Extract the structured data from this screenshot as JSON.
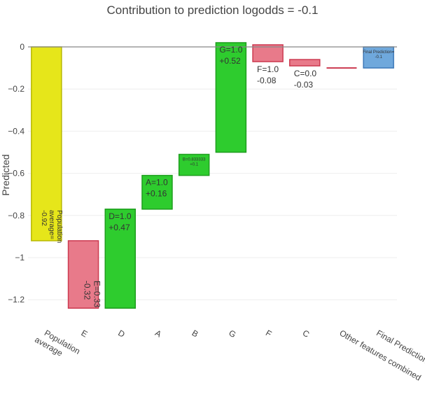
{
  "chart_data": {
    "type": "waterfall",
    "title": "Contribution to prediction logodds = -0.1",
    "ylabel": "Predicted",
    "xlabel": "",
    "ylim": [
      -1.3,
      0.03
    ],
    "yticks": [
      {
        "value": 0,
        "label": "0"
      },
      {
        "value": -0.2,
        "label": "−0.2"
      },
      {
        "value": -0.4,
        "label": "−0.4"
      },
      {
        "value": -0.6,
        "label": "−0.6"
      },
      {
        "value": -0.8,
        "label": "−0.8"
      },
      {
        "value": -1.0,
        "label": "−1"
      },
      {
        "value": -1.2,
        "label": "−1.2"
      }
    ],
    "colors": {
      "base": "#e6e61a",
      "base_border": "#b8b800",
      "positive": "#2ecc2e",
      "positive_border": "#1f9e1f",
      "negative": "#e87a8a",
      "negative_border": "#cc3a50",
      "final": "#6fa8dc",
      "final_border": "#3d78b8"
    },
    "bars": [
      {
        "category": "Population\naverage",
        "kind": "base",
        "start": 0,
        "end": -0.92,
        "label_lines": [
          "Population",
          "average=",
          "-0.92"
        ],
        "label_style": "rotated"
      },
      {
        "category": "E",
        "kind": "negative",
        "start": -0.92,
        "end": -1.24,
        "label_lines": [
          "E=0.33",
          "-0.32"
        ],
        "label_style": "rotated"
      },
      {
        "category": "D",
        "kind": "positive",
        "start": -1.24,
        "end": -0.77,
        "label_lines": [
          "D=1.0",
          "+0.47"
        ],
        "label_style": "normal"
      },
      {
        "category": "A",
        "kind": "positive",
        "start": -0.77,
        "end": -0.61,
        "label_lines": [
          "A=1.0",
          "+0.16"
        ],
        "label_style": "normal"
      },
      {
        "category": "B",
        "kind": "positive",
        "start": -0.61,
        "end": -0.51,
        "label_lines": [
          "B=0.833333",
          "+0.1"
        ],
        "label_style": "small"
      },
      {
        "category": "G",
        "kind": "positive",
        "start": -0.5,
        "end": 0.02,
        "label_lines": [
          "G=1.0",
          "+0.52"
        ],
        "label_style": "normal"
      },
      {
        "category": "F",
        "kind": "negative",
        "start": 0.01,
        "end": -0.07,
        "label_lines": [
          "F=1.0",
          "-0.08"
        ],
        "label_style": "below"
      },
      {
        "category": "C",
        "kind": "negative",
        "start": -0.06,
        "end": -0.09,
        "label_lines": [
          "C=0.0",
          "-0.03"
        ],
        "label_style": "below"
      },
      {
        "category": "Other features combined",
        "kind": "negative",
        "start": -0.1,
        "end": -0.1,
        "label_lines": [],
        "label_style": "none"
      },
      {
        "category": "Final Prediction",
        "kind": "final",
        "start": 0,
        "end": -0.1,
        "label_lines": [
          "Final Prediction=",
          "-0.1"
        ],
        "label_style": "small"
      }
    ]
  }
}
